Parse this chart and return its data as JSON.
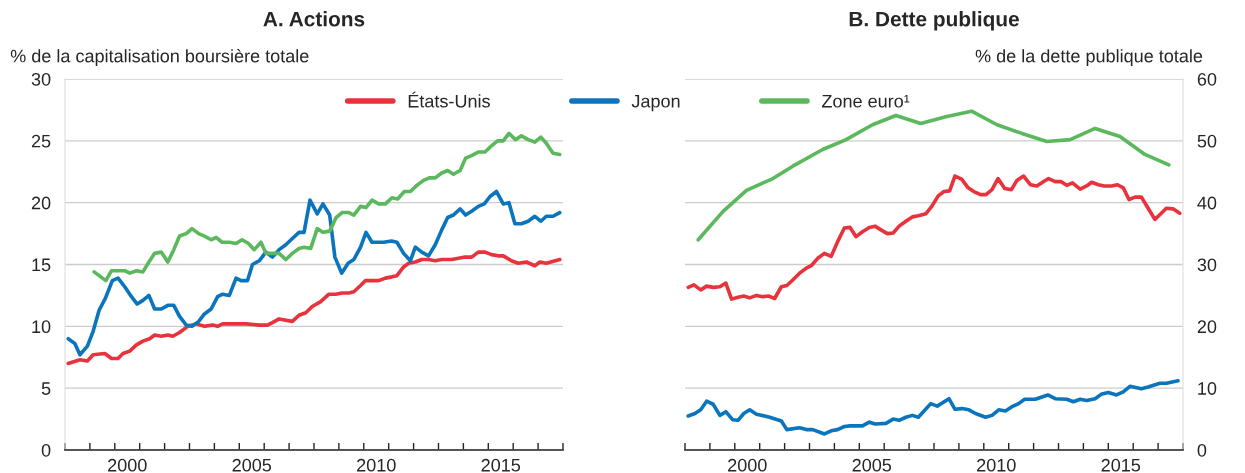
{
  "chart_data": [
    {
      "type": "line",
      "title": "A. Actions",
      "ylabel": "% de la capitalisation boursière totale",
      "xlim": [
        1998,
        2018
      ],
      "xticks": [
        {
          "value": 1998,
          "label": null
        },
        {
          "value": 1999,
          "label": null
        },
        {
          "value": 2000,
          "label": null
        },
        {
          "value": 2001,
          "label": null
        },
        {
          "value": 2002,
          "label": null
        },
        {
          "value": 2003,
          "label": null
        },
        {
          "value": 2004,
          "label": null
        },
        {
          "value": 2005,
          "label": null
        },
        {
          "value": 2006,
          "label": null
        },
        {
          "value": 2007,
          "label": null
        },
        {
          "value": 2008,
          "label": null
        },
        {
          "value": 2009,
          "label": null
        },
        {
          "value": 2010,
          "label": null
        },
        {
          "value": 2011,
          "label": null
        },
        {
          "value": 2012,
          "label": null
        },
        {
          "value": 2013,
          "label": null
        },
        {
          "value": 2014,
          "label": null
        },
        {
          "value": 2015,
          "label": null
        },
        {
          "value": 2016,
          "label": null
        },
        {
          "value": 2017,
          "label": null
        },
        {
          "value": 2018,
          "label": null
        },
        {
          "value": 2000.5,
          "label": "2000"
        },
        {
          "value": 2005.5,
          "label": "2005"
        },
        {
          "value": 2010.5,
          "label": "2010"
        },
        {
          "value": 2015.5,
          "label": "2015"
        }
      ],
      "ylim": [
        0,
        30
      ],
      "yticks": [
        0,
        5,
        10,
        15,
        20,
        25,
        30
      ],
      "grid": "y",
      "legend": "top",
      "line_style": "solid",
      "marker": "none",
      "series": [
        {
          "name": "États-Unis",
          "color": "#e8323c",
          "x": [
            1998.13,
            1998.6,
            1998.9,
            1999.13,
            1999.6,
            1999.87,
            2000.13,
            2000.33,
            2000.6,
            2000.87,
            2001.13,
            2001.4,
            2001.6,
            2001.87,
            2002.13,
            2002.33,
            2002.6,
            2002.93,
            2003.27,
            2003.6,
            2003.93,
            2004.13,
            2004.33,
            2004.73,
            2004.87,
            2005.27,
            2005.8,
            2006.13,
            2006.33,
            2006.6,
            2006.87,
            2007.13,
            2007.4,
            2007.67,
            2007.93,
            2008.27,
            2008.6,
            2008.87,
            2009.13,
            2009.4,
            2009.6,
            2009.87,
            2010.07,
            2010.33,
            2010.6,
            2010.87,
            2011.13,
            2011.33,
            2011.6,
            2011.8,
            2012.07,
            2012.33,
            2012.6,
            2012.87,
            2013.13,
            2013.53,
            2013.8,
            2014.07,
            2014.33,
            2014.6,
            2014.87,
            2015.13,
            2015.4,
            2015.6,
            2015.93,
            2016.2,
            2016.53,
            2016.87,
            2017.07,
            2017.33,
            2017.87
          ],
          "values": [
            7.0,
            7.3,
            7.2,
            7.7,
            7.8,
            7.4,
            7.4,
            7.8,
            8.0,
            8.5,
            8.8,
            9.0,
            9.3,
            9.2,
            9.3,
            9.2,
            9.5,
            10.0,
            10.2,
            10.0,
            10.1,
            10.0,
            10.2,
            10.2,
            10.2,
            10.2,
            10.1,
            10.1,
            10.3,
            10.6,
            10.5,
            10.4,
            10.9,
            11.1,
            11.6,
            12.0,
            12.6,
            12.6,
            12.7,
            12.7,
            12.8,
            13.3,
            13.7,
            13.7,
            13.7,
            13.9,
            14.0,
            14.1,
            14.8,
            15.1,
            15.2,
            15.4,
            15.4,
            15.3,
            15.4,
            15.4,
            15.5,
            15.6,
            15.6,
            16.0,
            16.0,
            15.8,
            15.7,
            15.7,
            15.3,
            15.1,
            15.2,
            14.9,
            15.2,
            15.1,
            15.4
          ]
        },
        {
          "name": "Japon",
          "color": "#0a75bc",
          "x": [
            1998.13,
            1998.4,
            1998.6,
            1998.9,
            1999.13,
            1999.37,
            1999.63,
            1999.9,
            2000.13,
            2000.4,
            2000.67,
            2000.9,
            2001.13,
            2001.37,
            2001.6,
            2001.87,
            2002.13,
            2002.37,
            2002.6,
            2002.87,
            2003.1,
            2003.37,
            2003.6,
            2003.87,
            2004.13,
            2004.33,
            2004.6,
            2004.87,
            2005.07,
            2005.33,
            2005.53,
            2005.8,
            2006.07,
            2006.33,
            2006.6,
            2006.87,
            2007.13,
            2007.4,
            2007.6,
            2007.84,
            2008.13,
            2008.36,
            2008.63,
            2008.84,
            2009.11,
            2009.37,
            2009.6,
            2009.87,
            2010.09,
            2010.33,
            2010.8,
            2011.11,
            2011.33,
            2011.6,
            2011.87,
            2012.07,
            2012.33,
            2012.6,
            2012.87,
            2013.13,
            2013.37,
            2013.6,
            2013.87,
            2014.09,
            2014.33,
            2014.6,
            2014.84,
            2015.07,
            2015.33,
            2015.6,
            2015.83,
            2016.07,
            2016.33,
            2016.6,
            2016.87,
            2017.11,
            2017.33,
            2017.6,
            2017.87
          ],
          "values": [
            9.0,
            8.6,
            7.7,
            8.4,
            9.6,
            11.3,
            12.3,
            13.7,
            13.9,
            13.2,
            12.4,
            11.8,
            12.1,
            12.5,
            11.4,
            11.4,
            11.7,
            11.7,
            10.8,
            10.1,
            10.0,
            10.4,
            11.0,
            11.4,
            12.4,
            12.6,
            12.5,
            13.9,
            13.7,
            13.7,
            15.0,
            15.3,
            16.0,
            15.6,
            16.2,
            16.6,
            17.1,
            17.6,
            17.6,
            20.2,
            19.1,
            19.9,
            19.0,
            15.6,
            14.3,
            15.1,
            15.4,
            16.4,
            17.6,
            16.8,
            16.8,
            16.9,
            16.8,
            15.9,
            15.3,
            16.4,
            16.0,
            15.7,
            16.6,
            17.8,
            18.8,
            19.0,
            19.5,
            19.0,
            19.3,
            19.7,
            19.9,
            20.5,
            20.9,
            19.9,
            20.0,
            18.3,
            18.3,
            18.5,
            18.9,
            18.5,
            18.9,
            18.9,
            19.2
          ]
        },
        {
          "name": "Zone euro¹",
          "color": "#5cb85c",
          "x": [
            1999.17,
            1999.64,
            1999.87,
            2000.13,
            2000.4,
            2000.6,
            2000.87,
            2001.13,
            2001.37,
            2001.6,
            2001.87,
            2002.13,
            2002.37,
            2002.6,
            2002.87,
            2003.1,
            2003.37,
            2003.6,
            2003.87,
            2004.07,
            2004.31,
            2004.6,
            2004.87,
            2005.11,
            2005.37,
            2005.6,
            2005.87,
            2006.07,
            2006.33,
            2006.6,
            2006.87,
            2007.13,
            2007.4,
            2007.6,
            2007.87,
            2008.13,
            2008.36,
            2008.63,
            2008.89,
            2009.13,
            2009.4,
            2009.6,
            2009.87,
            2010.09,
            2010.33,
            2010.6,
            2010.87,
            2011.13,
            2011.36,
            2011.63,
            2011.87,
            2012.13,
            2012.4,
            2012.63,
            2012.87,
            2013.13,
            2013.37,
            2013.6,
            2013.87,
            2014.09,
            2014.33,
            2014.6,
            2014.87,
            2015.13,
            2015.37,
            2015.6,
            2015.83,
            2016.09,
            2016.33,
            2016.6,
            2016.87,
            2017.11,
            2017.33,
            2017.6,
            2017.87
          ],
          "values": [
            14.4,
            13.7,
            14.5,
            14.5,
            14.5,
            14.3,
            14.5,
            14.4,
            15.2,
            15.9,
            16.0,
            15.2,
            16.2,
            17.3,
            17.5,
            17.9,
            17.5,
            17.3,
            17.0,
            17.2,
            16.8,
            16.8,
            16.7,
            17.0,
            16.7,
            16.2,
            16.8,
            15.9,
            15.9,
            15.9,
            15.4,
            15.9,
            16.3,
            16.4,
            16.3,
            17.9,
            17.6,
            17.7,
            18.8,
            19.2,
            19.2,
            19.0,
            19.7,
            19.6,
            20.2,
            19.9,
            19.9,
            20.4,
            20.3,
            20.9,
            20.9,
            21.4,
            21.8,
            22.0,
            22.0,
            22.4,
            22.6,
            22.3,
            22.6,
            23.6,
            23.8,
            24.1,
            24.1,
            24.6,
            25.0,
            25.0,
            25.6,
            25.1,
            25.4,
            25.1,
            24.9,
            25.3,
            24.8,
            24.0,
            23.9
          ]
        }
      ]
    },
    {
      "type": "line",
      "title": "B. Dette publique",
      "y2label": "% de la dette publique totale",
      "xlim": [
        1998,
        2018
      ],
      "xticks": [
        {
          "value": 1998,
          "label": null
        },
        {
          "value": 1999,
          "label": null
        },
        {
          "value": 2000,
          "label": null
        },
        {
          "value": 2001,
          "label": null
        },
        {
          "value": 2002,
          "label": null
        },
        {
          "value": 2003,
          "label": null
        },
        {
          "value": 2004,
          "label": null
        },
        {
          "value": 2005,
          "label": null
        },
        {
          "value": 2006,
          "label": null
        },
        {
          "value": 2007,
          "label": null
        },
        {
          "value": 2008,
          "label": null
        },
        {
          "value": 2009,
          "label": null
        },
        {
          "value": 2010,
          "label": null
        },
        {
          "value": 2011,
          "label": null
        },
        {
          "value": 2012,
          "label": null
        },
        {
          "value": 2013,
          "label": null
        },
        {
          "value": 2014,
          "label": null
        },
        {
          "value": 2015,
          "label": null
        },
        {
          "value": 2016,
          "label": null
        },
        {
          "value": 2017,
          "label": null
        },
        {
          "value": 2018,
          "label": null
        },
        {
          "value": 2000.5,
          "label": "2000"
        },
        {
          "value": 2005.5,
          "label": "2005"
        },
        {
          "value": 2010.5,
          "label": "2010"
        },
        {
          "value": 2015.5,
          "label": "2015"
        }
      ],
      "y2lim": [
        0,
        60
      ],
      "y2ticks": [
        0,
        10,
        20,
        30,
        40,
        50,
        60
      ],
      "grid": "y",
      "line_style": "solid",
      "marker": "none",
      "series": [
        {
          "color": "#e8323c",
          "axis": "y2",
          "x": [
            1998.13,
            1998.36,
            1998.63,
            1998.87,
            1999.13,
            1999.4,
            1999.64,
            1999.87,
            2000.13,
            2000.36,
            2000.6,
            2000.87,
            2001.13,
            2001.37,
            2001.6,
            2001.87,
            2002.09,
            2002.33,
            2002.6,
            2002.87,
            2003.07,
            2003.33,
            2003.6,
            2003.87,
            2004.13,
            2004.4,
            2004.63,
            2004.87,
            2005.13,
            2005.4,
            2005.64,
            2005.87,
            2006.13,
            2006.36,
            2006.6,
            2006.87,
            2007.13,
            2007.37,
            2007.67,
            2007.91,
            2008.17,
            2008.4,
            2008.63,
            2008.84,
            2009.11,
            2009.37,
            2009.6,
            2009.87,
            2010.09,
            2010.33,
            2010.57,
            2010.84,
            2011.11,
            2011.33,
            2011.6,
            2011.87,
            2012.13,
            2012.36,
            2012.6,
            2012.87,
            2013.11,
            2013.33,
            2013.56,
            2013.87,
            2014.13,
            2014.33,
            2014.6,
            2014.84,
            2015.13,
            2015.37,
            2015.6,
            2015.83,
            2016.07,
            2016.33,
            2016.6,
            2016.87,
            2017.11,
            2017.33,
            2017.6,
            2017.87
          ],
          "values": [
            26.3,
            26.7,
            25.9,
            26.5,
            26.3,
            26.4,
            27.0,
            24.4,
            24.7,
            24.9,
            24.6,
            25.0,
            24.8,
            24.9,
            24.5,
            26.4,
            26.6,
            27.5,
            28.6,
            29.4,
            29.8,
            31.0,
            31.8,
            31.3,
            33.7,
            35.9,
            36.0,
            34.5,
            35.3,
            36.0,
            36.2,
            35.6,
            35.0,
            35.1,
            36.2,
            37.0,
            37.7,
            37.9,
            38.2,
            39.4,
            41.1,
            41.8,
            41.9,
            44.3,
            43.8,
            42.4,
            41.8,
            41.3,
            41.3,
            42.1,
            43.9,
            42.3,
            42.1,
            43.6,
            44.3,
            42.9,
            42.7,
            43.3,
            43.9,
            43.4,
            43.4,
            42.8,
            43.2,
            42.2,
            42.7,
            43.3,
            42.9,
            42.7,
            42.7,
            42.9,
            42.4,
            40.5,
            40.9,
            40.9,
            39.1,
            37.3,
            38.2,
            39.1,
            39.0,
            38.3
          ]
        },
        {
          "color": "#0a75bc",
          "axis": "y2",
          "x": [
            1998.13,
            1998.4,
            1998.63,
            1998.87,
            1999.13,
            1999.4,
            1999.64,
            1999.91,
            2000.13,
            2000.36,
            2000.6,
            2000.87,
            2001.4,
            2001.87,
            2002.09,
            2002.6,
            2002.87,
            2003.13,
            2003.6,
            2003.87,
            2004.13,
            2004.4,
            2004.63,
            2004.87,
            2005.13,
            2005.4,
            2005.64,
            2006.07,
            2006.36,
            2006.6,
            2006.87,
            2007.13,
            2007.37,
            2007.6,
            2007.87,
            2008.13,
            2008.6,
            2008.84,
            2009.13,
            2009.4,
            2009.67,
            2010.07,
            2010.33,
            2010.6,
            2010.87,
            2011.13,
            2011.4,
            2011.64,
            2012.07,
            2012.57,
            2012.87,
            2013.33,
            2013.6,
            2013.87,
            2014.13,
            2014.47,
            2014.71,
            2015.0,
            2015.33,
            2015.6,
            2015.87,
            2016.33,
            2016.6,
            2017.07,
            2017.33,
            2017.8
          ],
          "values": [
            5.5,
            5.9,
            6.5,
            7.9,
            7.4,
            5.6,
            6.2,
            4.9,
            4.8,
            5.9,
            6.5,
            5.8,
            5.3,
            4.7,
            3.3,
            3.6,
            3.3,
            3.3,
            2.6,
            3.1,
            3.3,
            3.8,
            3.9,
            3.9,
            3.9,
            4.5,
            4.2,
            4.3,
            5.0,
            4.8,
            5.3,
            5.6,
            5.3,
            6.3,
            7.5,
            7.1,
            8.3,
            6.6,
            6.7,
            6.5,
            5.9,
            5.3,
            5.6,
            6.5,
            6.3,
            7.0,
            7.5,
            8.2,
            8.2,
            8.9,
            8.3,
            8.2,
            7.8,
            8.2,
            8.0,
            8.3,
            9.0,
            9.3,
            8.9,
            9.4,
            10.3,
            9.9,
            10.2,
            10.8,
            10.8,
            11.2
          ]
        },
        {
          "color": "#5cb85c",
          "axis": "y2",
          "x": [
            1998.53,
            1999.53,
            2000.47,
            2001.53,
            2002.33,
            2003.53,
            2004.47,
            2005.53,
            2006.47,
            2007.47,
            2008.47,
            2009.51,
            2010.53,
            2011.53,
            2012.53,
            2013.47,
            2014.47,
            2015.47,
            2016.47,
            2017.43
          ],
          "values": [
            34.0,
            38.6,
            42.0,
            43.9,
            45.9,
            48.6,
            50.2,
            52.6,
            54.1,
            52.8,
            53.9,
            54.8,
            52.6,
            51.2,
            49.9,
            50.2,
            52.0,
            50.7,
            47.8,
            46.1
          ]
        }
      ]
    }
  ]
}
